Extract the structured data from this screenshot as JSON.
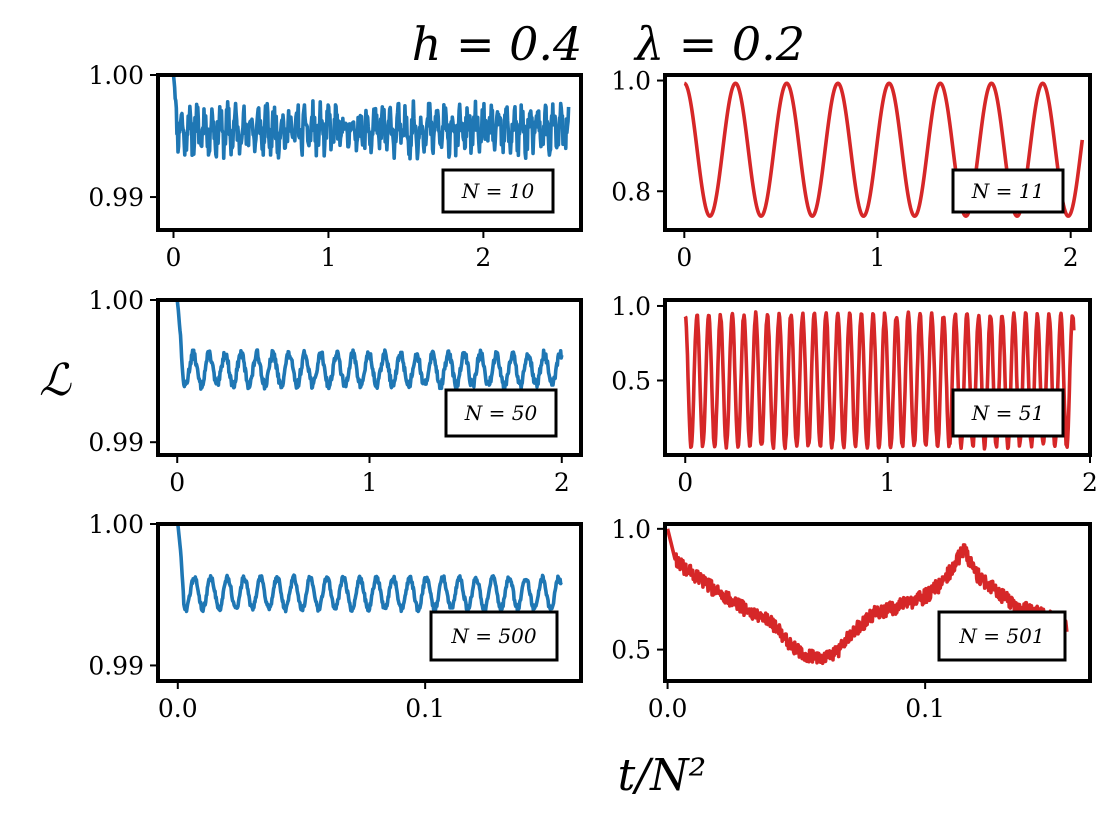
{
  "figure": {
    "title_h": "h = 0.4",
    "title_lambda": "λ = 0.2",
    "ylabel": "ℒ",
    "xlabel": "t/N²",
    "colors": {
      "left": "#1f77b4",
      "right": "#d62728"
    }
  },
  "chart_data": [
    {
      "type": "line",
      "panel": "row1-left",
      "legend": "N = 10",
      "color": "#1f77b4",
      "xlim": [
        -0.1,
        2.63
      ],
      "ylim": [
        0.9873,
        1.0
      ],
      "xticks": [
        0,
        1,
        2
      ],
      "xtick_labels": [
        "0",
        "1",
        "2"
      ],
      "yticks": [
        0.99,
        1.0
      ],
      "ytick_labels": [
        "0.99",
        "1.00"
      ],
      "signal": {
        "x_end": 2.55,
        "start": 1.0,
        "mean": 0.9955,
        "amp": 0.0012,
        "noise": 0.0012,
        "period": 0.05,
        "drop": 0.03,
        "seed": 11
      }
    },
    {
      "type": "line",
      "panel": "row1-right",
      "legend": "N = 11",
      "color": "#d62728",
      "xlim": [
        -0.1,
        2.1
      ],
      "ylim": [
        0.73,
        1.01
      ],
      "xticks": [
        0,
        1,
        2
      ],
      "xtick_labels": [
        "0",
        "1",
        "2"
      ],
      "yticks": [
        0.8,
        1.0
      ],
      "ytick_labels": [
        "0.8",
        "1.0"
      ],
      "signal": {
        "x_end": 2.06,
        "mean": 0.875,
        "amp": 0.12,
        "period": 0.265,
        "noise": 0.0,
        "seed": 12
      }
    },
    {
      "type": "line",
      "panel": "row2-left",
      "legend": "N = 50",
      "color": "#1f77b4",
      "xlim": [
        -0.1,
        2.1
      ],
      "ylim": [
        0.9891,
        1.0
      ],
      "xticks": [
        0,
        1,
        2
      ],
      "xtick_labels": [
        "0",
        "1",
        "2"
      ],
      "yticks": [
        0.99,
        1.0
      ],
      "ytick_labels": [
        "0.99",
        "1.00"
      ],
      "signal": {
        "x_end": 2.0,
        "start": 1.0,
        "mean": 0.9951,
        "amp": 0.0011,
        "noise": 0.0003,
        "period": 0.083,
        "drop": 0.03,
        "seed": 13
      }
    },
    {
      "type": "line",
      "panel": "row2-right",
      "legend": "N = 51",
      "color": "#d62728",
      "xlim": [
        -0.1,
        2.0
      ],
      "ylim": [
        0.0,
        1.04
      ],
      "xticks": [
        0,
        1,
        2
      ],
      "xtick_labels": [
        "0",
        "1",
        "2"
      ],
      "yticks": [
        0.5,
        1.0
      ],
      "ytick_labels": [
        "0.5",
        "1.0"
      ],
      "signal": {
        "x_end": 1.92,
        "mean": 0.5,
        "amp": 0.44,
        "period": 0.058,
        "noise": 0.02,
        "seed": 14
      }
    },
    {
      "type": "line",
      "panel": "row3-left",
      "legend": "N = 500",
      "color": "#1f77b4",
      "xlim": [
        -0.008,
        0.163
      ],
      "ylim": [
        0.9889,
        1.0
      ],
      "xticks": [
        0.0,
        0.1
      ],
      "xtick_labels": [
        "0.0",
        "0.1"
      ],
      "yticks": [
        0.99,
        1.0
      ],
      "ytick_labels": [
        "0.99",
        "1.00"
      ],
      "signal": {
        "x_end": 0.155,
        "start": 1.0,
        "mean": 0.9951,
        "amp": 0.0011,
        "noise": 0.0002,
        "period": 0.0067,
        "drop": 0.0025,
        "seed": 15
      }
    },
    {
      "type": "line",
      "panel": "row3-right",
      "legend": "N = 501",
      "color": "#d62728",
      "xlim": [
        -0.001,
        0.164
      ],
      "ylim": [
        0.37,
        1.02
      ],
      "xticks": [
        0.0,
        0.1
      ],
      "xtick_labels": [
        "0.0",
        "0.1"
      ],
      "yticks": [
        0.5,
        1.0
      ],
      "ytick_labels": [
        "0.5",
        "1.0"
      ],
      "signal": {
        "x_end": 0.155,
        "noise": 0.03,
        "seed": 16,
        "envelope": [
          [
            0.0,
            1.0
          ],
          [
            0.003,
            0.87
          ],
          [
            0.015,
            0.77
          ],
          [
            0.03,
            0.67
          ],
          [
            0.04,
            0.62
          ],
          [
            0.048,
            0.52
          ],
          [
            0.055,
            0.47
          ],
          [
            0.064,
            0.47
          ],
          [
            0.072,
            0.57
          ],
          [
            0.08,
            0.65
          ],
          [
            0.09,
            0.68
          ],
          [
            0.1,
            0.72
          ],
          [
            0.107,
            0.78
          ],
          [
            0.112,
            0.86
          ],
          [
            0.115,
            0.92
          ],
          [
            0.12,
            0.81
          ],
          [
            0.13,
            0.72
          ],
          [
            0.14,
            0.66
          ],
          [
            0.147,
            0.64
          ],
          [
            0.155,
            0.6
          ]
        ]
      }
    }
  ]
}
